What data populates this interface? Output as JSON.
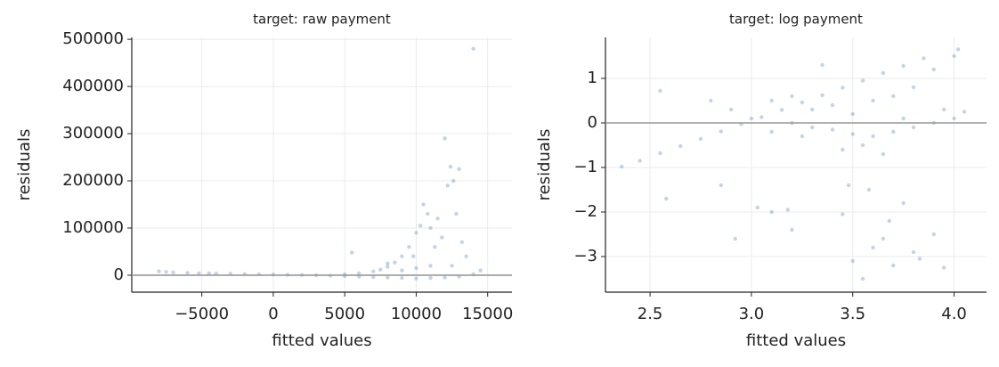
{
  "chart_data": [
    {
      "type": "scatter",
      "title": "target: raw payment",
      "x_label": "fitted values",
      "y_label": "residuals",
      "color": "#3a6fa8",
      "alpha": 0.3,
      "grid": true,
      "reference_line": 0,
      "xlim": [
        -9900,
        16700
      ],
      "ylim": [
        -36000,
        504000
      ],
      "xticks": [
        {
          "value": -5000,
          "label": "−5000"
        },
        0,
        5000,
        10000,
        15000
      ],
      "yticks": [
        0,
        100000,
        200000,
        300000,
        400000,
        500000
      ],
      "x": [
        -8000,
        -7500,
        -7000,
        -6000,
        -5200,
        -4500,
        -4000,
        -3000,
        -2000,
        -1000,
        0,
        1000,
        2000,
        3000,
        4000,
        5000,
        6000,
        7000,
        8000,
        9000,
        10000,
        11000,
        12000,
        13000,
        14000,
        5000,
        6000,
        7000,
        7500,
        8000,
        8500,
        9000,
        9500,
        10000,
        10300,
        5500,
        8000,
        9800,
        10500,
        10800,
        11000,
        11300,
        11500,
        11800,
        12000,
        12200,
        12400,
        12600,
        12800,
        13000,
        13200,
        13500,
        12500,
        11000,
        10000,
        9000,
        14000,
        14500
      ],
      "values": [
        8000,
        7000,
        6000,
        5000,
        4000,
        4000,
        3500,
        3000,
        2500,
        2000,
        1500,
        1000,
        500,
        0,
        -1000,
        -2000,
        -3000,
        -4000,
        -5000,
        -6000,
        -7000,
        -6000,
        -5000,
        -3000,
        2000,
        2000,
        4000,
        8000,
        12000,
        18000,
        27000,
        40000,
        60000,
        90000,
        105000,
        48000,
        25000,
        40000,
        150000,
        130000,
        100000,
        60000,
        120000,
        80000,
        290000,
        190000,
        230000,
        200000,
        130000,
        225000,
        70000,
        40000,
        20000,
        20000,
        15000,
        10000,
        480000,
        10000
      ]
    },
    {
      "type": "scatter",
      "title": "target: log payment",
      "x_label": "fitted values",
      "y_label": "residuals",
      "color": "#3a6fa8",
      "alpha": 0.3,
      "grid": true,
      "reference_line": 0,
      "xlim": [
        2.28,
        4.16
      ],
      "ylim": [
        -3.8,
        1.92
      ],
      "xticks": [
        2.5,
        {
          "value": 3,
          "label": "3.0"
        },
        3.5,
        {
          "value": 4,
          "label": "4.0"
        }
      ],
      "yticks": [
        {
          "value": -3,
          "label": "−3"
        },
        {
          "value": -2,
          "label": "−2"
        },
        {
          "value": -1,
          "label": "−1"
        },
        0,
        1
      ],
      "x": [
        2.36,
        2.45,
        2.55,
        2.65,
        2.75,
        2.85,
        2.95,
        3.05,
        3.15,
        3.25,
        3.35,
        3.45,
        3.55,
        3.65,
        3.75,
        3.85,
        3.0,
        3.2,
        3.4,
        3.6,
        3.8,
        4.0,
        3.9,
        3.7,
        3.5,
        3.3,
        3.1,
        3.2,
        3.3,
        3.4,
        3.5,
        3.6,
        3.7,
        3.8,
        3.9,
        4.0,
        4.02,
        3.95,
        4.05,
        3.75,
        3.55,
        3.45,
        3.65,
        3.25,
        2.55,
        2.8,
        2.9,
        3.35,
        3.1,
        2.85,
        2.58,
        2.92,
        3.03,
        3.1,
        3.18,
        3.2,
        3.45,
        3.5,
        3.55,
        3.6,
        3.65,
        3.7,
        3.8,
        3.83,
        3.95,
        3.9,
        3.75,
        3.48,
        3.58,
        3.68
      ],
      "values": [
        -0.98,
        -0.85,
        -0.68,
        -0.52,
        -0.36,
        -0.19,
        -0.03,
        0.13,
        0.29,
        0.46,
        0.62,
        0.79,
        0.95,
        1.12,
        1.28,
        1.45,
        0.1,
        0.0,
        -0.15,
        -0.3,
        -0.1,
        0.1,
        0.0,
        -0.2,
        -0.25,
        -0.1,
        0.5,
        0.6,
        0.3,
        0.4,
        0.2,
        0.5,
        0.6,
        0.8,
        1.2,
        1.5,
        1.65,
        0.3,
        0.25,
        0.1,
        -0.5,
        -0.6,
        -0.7,
        -0.3,
        0.72,
        0.5,
        0.3,
        1.3,
        -0.2,
        -1.4,
        -1.7,
        -2.6,
        -1.9,
        -2.0,
        -1.95,
        -2.4,
        -2.05,
        -3.1,
        -3.5,
        -2.8,
        -2.6,
        -3.2,
        -2.9,
        -3.05,
        -3.25,
        -2.5,
        -1.8,
        -1.4,
        -1.5,
        -2.2
      ]
    }
  ]
}
